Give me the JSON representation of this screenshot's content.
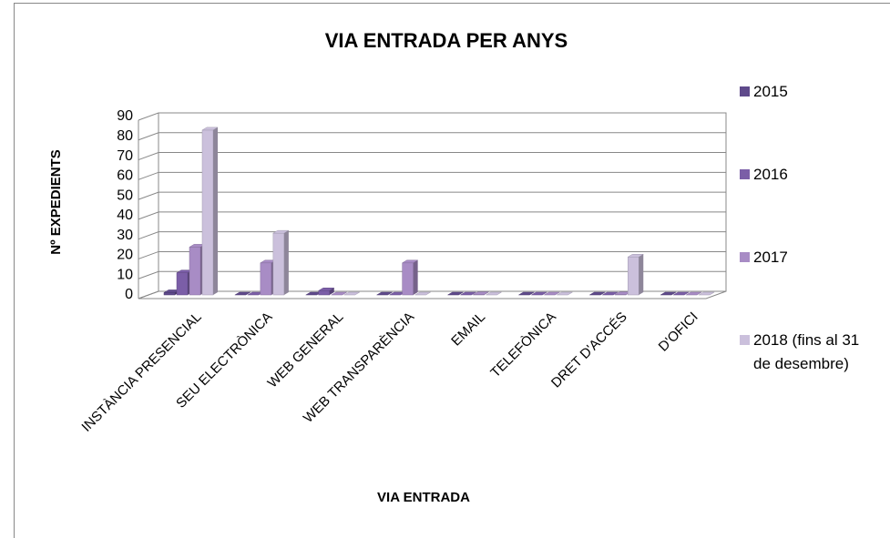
{
  "chart_data": {
    "type": "bar3d",
    "title": "VIA ENTRADA PER ANYS",
    "x_label": "VIA ENTRADA",
    "y_label": "Nº EXPEDIENTS",
    "categories": [
      "INSTÀNCIA PRESENCIAL",
      "SEU ELECTRÒNICA",
      "WEB GENERAL",
      "WEB TRANSPARÈNCIA",
      "EMAIL",
      "TELEFÒNICA",
      "DRET D'ACCÉS",
      "D'OFICI"
    ],
    "series": [
      {
        "name": "2015",
        "color": "#5f4a8b",
        "values": [
          3,
          0,
          0,
          0,
          0,
          0,
          0,
          0
        ]
      },
      {
        "name": "2016",
        "color": "#7b5ea7",
        "values": [
          13,
          1,
          4,
          0,
          0,
          0,
          0,
          0
        ]
      },
      {
        "name": "2017",
        "color": "#a88cc5",
        "values": [
          26,
          18,
          0,
          18,
          2,
          1,
          2,
          1
        ]
      },
      {
        "name": "2018 (fins al 31 de desembre)",
        "color": "#cbc0dc",
        "values": [
          85,
          33,
          1,
          0,
          0,
          0,
          21,
          0
        ]
      }
    ],
    "ylim": [
      0,
      90
    ],
    "yticks": [
      0,
      10,
      20,
      30,
      40,
      50,
      60,
      70,
      80,
      90
    ],
    "grid": true,
    "legend": "right"
  }
}
